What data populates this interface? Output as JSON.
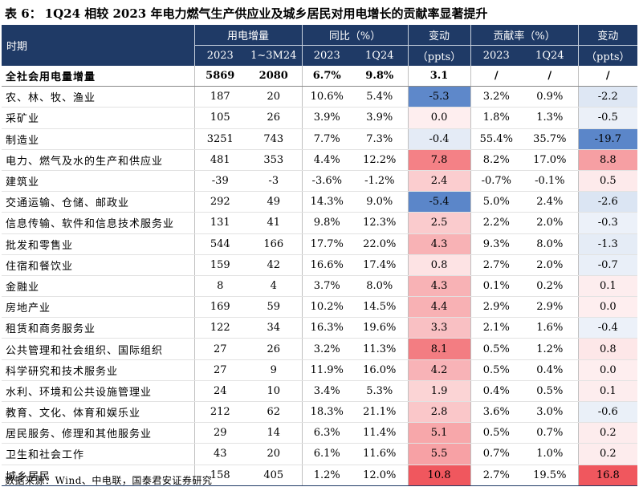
{
  "title": {
    "label": "表 6：",
    "text": "1Q24 相较 2023 年电力燃气生产供应业及城乡居民对用电增长的贡献率显著提升"
  },
  "header": {
    "period_label": "时期",
    "group_increase": "用电增量",
    "group_yoy": "同比（%）",
    "group_change1": "变动",
    "group_contrib": "贡献率（%）",
    "group_change2": "变动",
    "sub_2023_a": "2023",
    "sub_1_3m24": "1~3M24",
    "sub_2023_b": "2023",
    "sub_1q24_a": "1Q24",
    "sub_ppts_1": "（ppts）",
    "sub_2023_c": "2023",
    "sub_1q24_b": "1Q24",
    "sub_ppts_2": "（ppts）"
  },
  "colors": {
    "header_bg": "#1f3a66",
    "pos_max": "#f0575e",
    "neg_max": "#5b86c9"
  },
  "rows": [
    {
      "name": "全社会用电量增量",
      "inc_2023": "5869",
      "inc_1q24": "2080",
      "yoy_2023": "6.7%",
      "yoy_1q24": "9.8%",
      "chg1": "3.1",
      "con_2023": "/",
      "con_1q24": "/",
      "chg2": "/"
    },
    {
      "name": "农、林、牧、渔业",
      "inc_2023": "187",
      "inc_1q24": "20",
      "yoy_2023": "10.6%",
      "yoy_1q24": "5.4%",
      "chg1": "-5.3",
      "con_2023": "3.2%",
      "con_1q24": "0.9%",
      "chg2": "-2.2"
    },
    {
      "name": "采矿业",
      "inc_2023": "105",
      "inc_1q24": "26",
      "yoy_2023": "3.9%",
      "yoy_1q24": "3.9%",
      "chg1": "0.0",
      "con_2023": "1.8%",
      "con_1q24": "1.3%",
      "chg2": "-0.5"
    },
    {
      "name": "制造业",
      "inc_2023": "3251",
      "inc_1q24": "743",
      "yoy_2023": "7.7%",
      "yoy_1q24": "7.3%",
      "chg1": "-0.4",
      "con_2023": "55.4%",
      "con_1q24": "35.7%",
      "chg2": "-19.7"
    },
    {
      "name": "电力、燃气及水的生产和供应业",
      "inc_2023": "481",
      "inc_1q24": "353",
      "yoy_2023": "4.4%",
      "yoy_1q24": "12.2%",
      "chg1": "7.8",
      "con_2023": "8.2%",
      "con_1q24": "17.0%",
      "chg2": "8.8"
    },
    {
      "name": "建筑业",
      "inc_2023": "-39",
      "inc_1q24": "-3",
      "yoy_2023": "-3.6%",
      "yoy_1q24": "-1.2%",
      "chg1": "2.4",
      "con_2023": "-0.7%",
      "con_1q24": "-0.1%",
      "chg2": "0.5"
    },
    {
      "name": "交通运输、仓储、邮政业",
      "inc_2023": "292",
      "inc_1q24": "49",
      "yoy_2023": "14.3%",
      "yoy_1q24": "9.0%",
      "chg1": "-5.4",
      "con_2023": "5.0%",
      "con_1q24": "2.4%",
      "chg2": "-2.6"
    },
    {
      "name": "信息传输、软件和信息技术服务业",
      "inc_2023": "131",
      "inc_1q24": "41",
      "yoy_2023": "9.8%",
      "yoy_1q24": "12.3%",
      "chg1": "2.5",
      "con_2023": "2.2%",
      "con_1q24": "2.0%",
      "chg2": "-0.3"
    },
    {
      "name": "批发和零售业",
      "inc_2023": "544",
      "inc_1q24": "166",
      "yoy_2023": "17.7%",
      "yoy_1q24": "22.0%",
      "chg1": "4.3",
      "con_2023": "9.3%",
      "con_1q24": "8.0%",
      "chg2": "-1.3"
    },
    {
      "name": "住宿和餐饮业",
      "inc_2023": "159",
      "inc_1q24": "42",
      "yoy_2023": "16.6%",
      "yoy_1q24": "17.4%",
      "chg1": "0.8",
      "con_2023": "2.7%",
      "con_1q24": "2.0%",
      "chg2": "-0.7"
    },
    {
      "name": "金融业",
      "inc_2023": "8",
      "inc_1q24": "4",
      "yoy_2023": "3.7%",
      "yoy_1q24": "8.0%",
      "chg1": "4.3",
      "con_2023": "0.1%",
      "con_1q24": "0.2%",
      "chg2": "0.1"
    },
    {
      "name": "房地产业",
      "inc_2023": "169",
      "inc_1q24": "59",
      "yoy_2023": "10.2%",
      "yoy_1q24": "14.5%",
      "chg1": "4.4",
      "con_2023": "2.9%",
      "con_1q24": "2.9%",
      "chg2": "0.0"
    },
    {
      "name": "租赁和商务服务业",
      "inc_2023": "122",
      "inc_1q24": "34",
      "yoy_2023": "16.3%",
      "yoy_1q24": "19.6%",
      "chg1": "3.3",
      "con_2023": "2.1%",
      "con_1q24": "1.6%",
      "chg2": "-0.4"
    },
    {
      "name": "公共管理和社会组织、国际组织",
      "inc_2023": "27",
      "inc_1q24": "26",
      "yoy_2023": "3.2%",
      "yoy_1q24": "11.3%",
      "chg1": "8.1",
      "con_2023": "0.5%",
      "con_1q24": "1.2%",
      "chg2": "0.8"
    },
    {
      "name": "科学研究和技术服务业",
      "inc_2023": "27",
      "inc_1q24": "9",
      "yoy_2023": "11.9%",
      "yoy_1q24": "16.0%",
      "chg1": "4.2",
      "con_2023": "0.5%",
      "con_1q24": "0.4%",
      "chg2": "0.0"
    },
    {
      "name": "水利、环境和公共设施管理业",
      "inc_2023": "24",
      "inc_1q24": "10",
      "yoy_2023": "3.4%",
      "yoy_1q24": "5.3%",
      "chg1": "1.9",
      "con_2023": "0.4%",
      "con_1q24": "0.5%",
      "chg2": "0.1"
    },
    {
      "name": "教育、文化、体育和娱乐业",
      "inc_2023": "212",
      "inc_1q24": "62",
      "yoy_2023": "18.3%",
      "yoy_1q24": "21.1%",
      "chg1": "2.8",
      "con_2023": "3.6%",
      "con_1q24": "3.0%",
      "chg2": "-0.6"
    },
    {
      "name": "居民服务、修理和其他服务业",
      "inc_2023": "29",
      "inc_1q24": "14",
      "yoy_2023": "6.3%",
      "yoy_1q24": "11.4%",
      "chg1": "5.1",
      "con_2023": "0.5%",
      "con_1q24": "0.7%",
      "chg2": "0.2"
    },
    {
      "name": "卫生和社会工作",
      "inc_2023": "43",
      "inc_1q24": "20",
      "yoy_2023": "6.1%",
      "yoy_1q24": "11.6%",
      "chg1": "5.5",
      "con_2023": "0.7%",
      "con_1q24": "1.0%",
      "chg2": "0.2"
    },
    {
      "name": "城乡居民",
      "inc_2023": "158",
      "inc_1q24": "405",
      "yoy_2023": "1.2%",
      "yoy_1q24": "12.0%",
      "chg1": "10.8",
      "con_2023": "2.7%",
      "con_1q24": "19.5%",
      "chg2": "16.8"
    }
  ],
  "source": "数据来源：Wind、中电联，国泰君安证券研究"
}
